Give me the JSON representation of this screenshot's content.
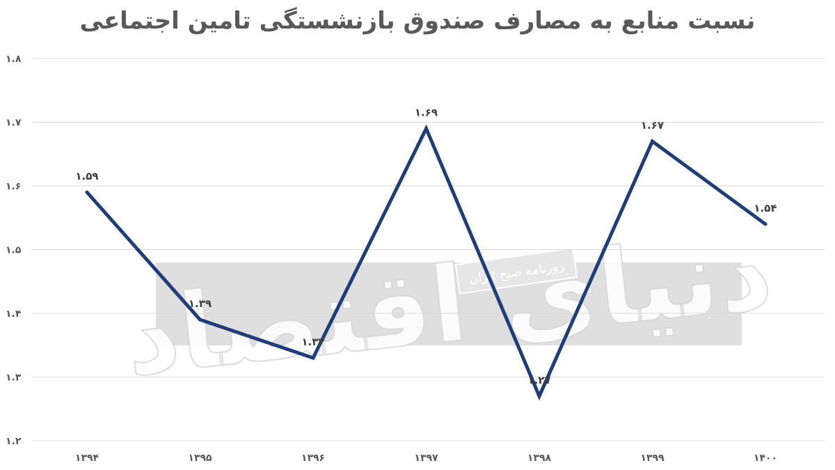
{
  "chart_data": {
    "type": "line",
    "title": "نسبت منابع به مصارف صندوق بازنشستگی تامین اجتماعی",
    "xlabel": "",
    "ylabel": "",
    "categories": [
      "۱۳۹۴",
      "۱۳۹۵",
      "۱۳۹۶",
      "۱۳۹۷",
      "۱۳۹۸",
      "۱۳۹۹",
      "۱۴۰۰"
    ],
    "series": [
      {
        "values": [
          1.59,
          1.39,
          1.33,
          1.69,
          1.27,
          1.67,
          1.54
        ],
        "labels": [
          "۱.۵۹",
          "۱.۳۹",
          "۱.۳۳",
          "۱.۶۹",
          "۱.۲۷",
          "۱.۶۷",
          "۱.۵۴"
        ],
        "color": "#1f3d7a"
      }
    ],
    "yticks": [
      1.2,
      1.3,
      1.4,
      1.5,
      1.6,
      1.7,
      1.8
    ],
    "ytick_labels": [
      "۱.۲",
      "۱.۳",
      "۱.۴",
      "۱.۵",
      "۱.۶",
      "۱.۷",
      "۱.۸"
    ],
    "ylim": [
      1.2,
      1.8
    ],
    "grid": true,
    "legend": "none"
  },
  "watermark": {
    "brand": "دنیای اقتصاد",
    "subtitle": "روزنامه صبح ایران"
  },
  "colors": {
    "line": "#1f3d7a",
    "grid": "#d9d9d9",
    "text": "#595959",
    "watermark_band": "#d9d9d9"
  }
}
